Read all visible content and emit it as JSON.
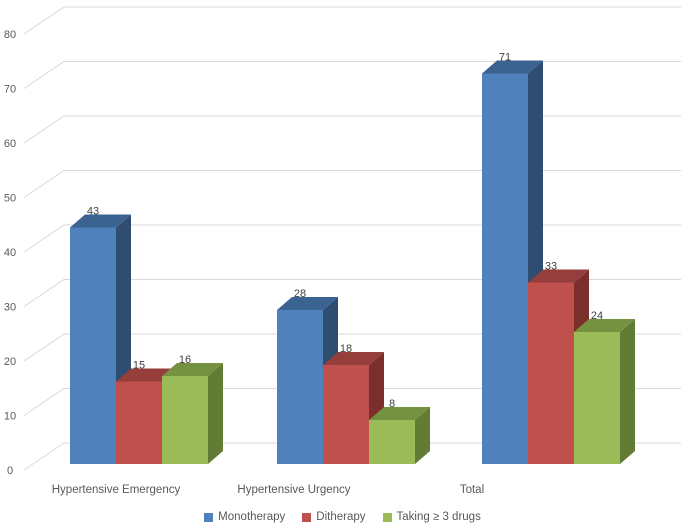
{
  "chart_data": {
    "type": "bar",
    "variant": "3d-clustered-column",
    "title": "",
    "categories": [
      "Hypertensive Emergency",
      "Hypertensive Urgency",
      "Total"
    ],
    "series": [
      {
        "id": "monotherapy",
        "name": "Monotherapy",
        "values": [
          43,
          28,
          71
        ],
        "color": "#4F81BD",
        "color_top": "#3A6391",
        "color_side": "#2E4D71"
      },
      {
        "id": "ditherapy",
        "name": "Ditherapy",
        "values": [
          15,
          18,
          33
        ],
        "color": "#C0504D",
        "color_top": "#953E3B",
        "color_side": "#7B2F2D"
      },
      {
        "id": "taking-3-drugs",
        "name": "Taking ≥ 3 drugs",
        "values": [
          16,
          8,
          24
        ],
        "color": "#9BBB59",
        "color_top": "#74923F",
        "color_side": "#637C35"
      }
    ],
    "data_labels": true,
    "y_ticks": [
      0,
      10,
      20,
      30,
      40,
      50,
      60,
      70,
      80
    ],
    "ylim": [
      0,
      80
    ],
    "xlabel": "",
    "ylabel": "",
    "grid": true,
    "legend_position": "bottom"
  },
  "colors": {
    "background": "#FFFFFF",
    "gridline": "#D9D9D9",
    "axis_text": "#595959",
    "data_label": "#404040",
    "legend_text": "#595959"
  }
}
